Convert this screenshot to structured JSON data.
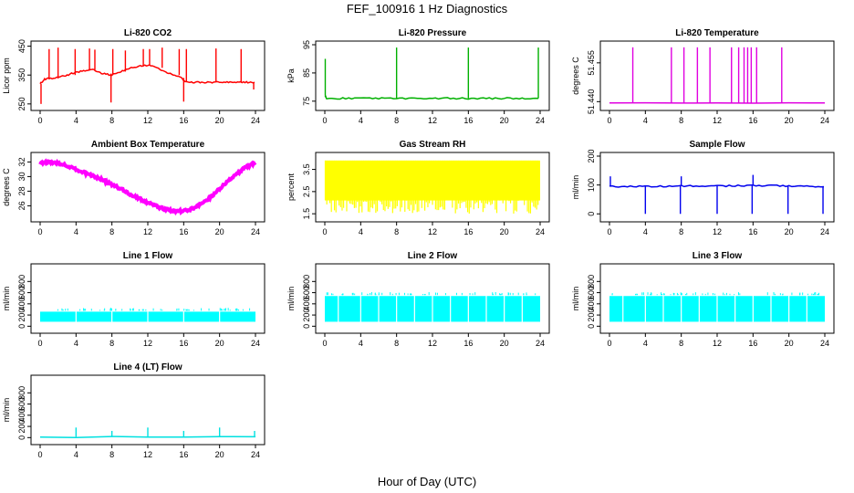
{
  "figure": {
    "title": "FEF_100916  1 Hz Diagnostics",
    "xlabel": "Hour of Day (UTC)"
  },
  "chart_data": [
    {
      "type": "line",
      "title": "Li-820 CO2",
      "ylabel": "Licor ppm",
      "color": "#ff0000",
      "xlim": [
        0,
        24
      ],
      "ylim": [
        240,
        455
      ],
      "xticks": [
        0,
        4,
        8,
        12,
        16,
        20,
        24
      ],
      "yticks": [
        250,
        350,
        450
      ],
      "series": [
        {
          "x": [
            0,
            0.5,
            1,
            2,
            3,
            4,
            5,
            6,
            7,
            8,
            9,
            10,
            11,
            12,
            13,
            14,
            15,
            15.8,
            16.2,
            17,
            18,
            19,
            20,
            21,
            22,
            23,
            23.9
          ],
          "values": [
            320,
            335,
            338,
            342,
            350,
            360,
            365,
            368,
            355,
            350,
            362,
            375,
            380,
            385,
            375,
            360,
            350,
            340,
            325,
            325,
            325,
            325,
            325,
            325,
            325,
            325,
            325
          ]
        }
      ],
      "spikes": [
        {
          "x": 0.1,
          "v": 250
        },
        {
          "x": 1.0,
          "v": 440
        },
        {
          "x": 2.0,
          "v": 445
        },
        {
          "x": 3.9,
          "v": 440
        },
        {
          "x": 5.5,
          "v": 442
        },
        {
          "x": 6.1,
          "v": 438
        },
        {
          "x": 7.9,
          "v": 255
        },
        {
          "x": 8.1,
          "v": 440
        },
        {
          "x": 9.5,
          "v": 435
        },
        {
          "x": 11.5,
          "v": 440
        },
        {
          "x": 12.2,
          "v": 440
        },
        {
          "x": 13.6,
          "v": 445
        },
        {
          "x": 15.5,
          "v": 440
        },
        {
          "x": 16.0,
          "v": 258
        },
        {
          "x": 16.3,
          "v": 440
        },
        {
          "x": 19.6,
          "v": 442
        },
        {
          "x": 22.4,
          "v": 440
        },
        {
          "x": 23.8,
          "v": 300
        }
      ]
    },
    {
      "type": "line",
      "title": "Li-820 Pressure",
      "ylabel": "kPa",
      "color": "#00b000",
      "xlim": [
        0,
        24
      ],
      "ylim": [
        73,
        95
      ],
      "xticks": [
        0,
        4,
        8,
        12,
        16,
        20,
        24
      ],
      "yticks": [
        75,
        85,
        95
      ],
      "series": [
        {
          "x": [
            0,
            0.2,
            2,
            4,
            6,
            8,
            10,
            12,
            14,
            16,
            18,
            20,
            22,
            23.8
          ],
          "values": [
            77,
            76,
            76,
            76,
            76,
            76,
            76,
            76,
            76,
            76,
            76,
            76,
            76,
            76
          ]
        }
      ],
      "spikes": [
        {
          "x": 0.05,
          "v": 90
        },
        {
          "x": 8.0,
          "v": 94
        },
        {
          "x": 16.0,
          "v": 94
        },
        {
          "x": 23.8,
          "v": 94
        }
      ]
    },
    {
      "type": "line",
      "title": "Li-820 Temperature",
      "ylabel": "degrees C",
      "color": "#e000e0",
      "xlim": [
        0,
        24
      ],
      "ylim": [
        51.438,
        51.462
      ],
      "xticks": [
        0,
        4,
        8,
        12,
        16,
        20,
        24
      ],
      "yticks": [
        51.44,
        51.455
      ],
      "ytick_labels": [
        "51.440",
        "51.455"
      ],
      "series": [
        {
          "x": [
            0,
            24
          ],
          "values": [
            51.4395,
            51.4395
          ]
        }
      ],
      "spikes": [
        {
          "x": 2.6,
          "v": 51.461
        },
        {
          "x": 6.9,
          "v": 51.461
        },
        {
          "x": 8.3,
          "v": 51.461
        },
        {
          "x": 9.8,
          "v": 51.461
        },
        {
          "x": 11.2,
          "v": 51.461
        },
        {
          "x": 13.6,
          "v": 51.461
        },
        {
          "x": 14.4,
          "v": 51.461
        },
        {
          "x": 15.0,
          "v": 51.461
        },
        {
          "x": 15.4,
          "v": 51.461
        },
        {
          "x": 15.8,
          "v": 51.461
        },
        {
          "x": 16.4,
          "v": 51.461
        },
        {
          "x": 19.2,
          "v": 51.461
        }
      ]
    },
    {
      "type": "line",
      "title": "Ambient Box Temperature",
      "ylabel": "degrees C",
      "color": "#ff00ff",
      "xlim": [
        0,
        24
      ],
      "ylim": [
        24.3,
        32.8
      ],
      "xticks": [
        0,
        4,
        8,
        12,
        16,
        20,
        24
      ],
      "yticks": [
        26,
        28,
        30,
        32
      ],
      "series": [
        {
          "x": [
            0,
            1,
            2,
            3,
            4,
            5,
            6,
            7,
            8,
            9,
            10,
            11,
            12,
            13,
            14,
            15,
            16,
            17,
            18,
            19,
            20,
            21,
            22,
            23,
            24
          ],
          "values": [
            31.8,
            32.0,
            31.8,
            31.5,
            31.0,
            30.5,
            30.0,
            29.5,
            28.9,
            28.3,
            27.6,
            27.0,
            26.4,
            25.9,
            25.5,
            25.2,
            25.3,
            25.6,
            26.3,
            27.2,
            28.3,
            29.5,
            30.5,
            31.3,
            31.9
          ]
        }
      ],
      "band": 0.35
    },
    {
      "type": "area",
      "title": "Gas Stream RH",
      "ylabel": "percent",
      "color": "#ffff00",
      "xlim": [
        0,
        24
      ],
      "ylim": [
        1.3,
        4.1
      ],
      "xticks": [
        0,
        4,
        8,
        12,
        16,
        20,
        24
      ],
      "yticks": [
        1.5,
        2.5,
        3.5
      ],
      "series": [
        {
          "x": [
            0,
            24
          ],
          "upper": [
            3.9,
            3.9
          ],
          "lower": [
            2.1,
            2.1
          ],
          "min": 1.5
        }
      ]
    },
    {
      "type": "line",
      "title": "Sample Flow",
      "ylabel": "ml/min",
      "color": "#0000ee",
      "xlim": [
        0,
        24
      ],
      "ylim": [
        -15,
        200
      ],
      "xticks": [
        0,
        4,
        8,
        12,
        16,
        20,
        24
      ],
      "yticks": [
        0,
        100,
        200
      ],
      "series": [
        {
          "x": [
            0,
            2,
            4,
            6,
            8,
            10,
            12,
            14,
            16,
            18,
            20,
            22,
            23.9
          ],
          "values": [
            95,
            95,
            95,
            96,
            96,
            97,
            97,
            97,
            98,
            98,
            96,
            95,
            94
          ]
        }
      ],
      "spikes": [
        {
          "x": 0.1,
          "v": 130
        },
        {
          "x": 4.0,
          "v": 0
        },
        {
          "x": 7.9,
          "v": 0
        },
        {
          "x": 8.0,
          "v": 130
        },
        {
          "x": 12.0,
          "v": 0
        },
        {
          "x": 15.9,
          "v": 0
        },
        {
          "x": 16.0,
          "v": 135
        },
        {
          "x": 19.9,
          "v": 0
        },
        {
          "x": 23.8,
          "v": 0
        }
      ]
    },
    {
      "type": "area",
      "title": "Line 1 Flow",
      "ylabel": "ml/min",
      "color": "#00ffff",
      "xlim": [
        0,
        24
      ],
      "ylim": [
        -60,
        1050
      ],
      "xticks": [
        0,
        4,
        8,
        12,
        16,
        20,
        24
      ],
      "yticks": [
        0,
        200,
        400,
        600,
        800
      ],
      "series": [
        {
          "x": [
            0,
            24
          ],
          "upper": [
            260,
            260
          ],
          "lower": [
            80,
            80
          ]
        }
      ],
      "gaps": [
        4,
        8,
        12,
        16,
        20
      ]
    },
    {
      "type": "area",
      "title": "Line 2 Flow",
      "ylabel": "ml/min",
      "color": "#00ffff",
      "xlim": [
        0,
        24
      ],
      "ylim": [
        -60,
        1050
      ],
      "xticks": [
        0,
        4,
        8,
        12,
        16,
        20,
        24
      ],
      "yticks": [
        0,
        200,
        400,
        600,
        800
      ],
      "series": [
        {
          "x": [
            0,
            24
          ],
          "upper": [
            540,
            540
          ],
          "lower": [
            80,
            80
          ]
        }
      ],
      "gaps": [
        1.5,
        4,
        6,
        8,
        10,
        12,
        14,
        16,
        18,
        20,
        22
      ]
    },
    {
      "type": "area",
      "title": "Line 3 Flow",
      "ylabel": "ml/min",
      "color": "#00ffff",
      "xlim": [
        0,
        24
      ],
      "ylim": [
        -60,
        1050
      ],
      "xticks": [
        0,
        4,
        8,
        12,
        16,
        20,
        24
      ],
      "yticks": [
        0,
        200,
        400,
        600,
        800
      ],
      "series": [
        {
          "x": [
            0,
            24
          ],
          "upper": [
            540,
            540
          ],
          "lower": [
            80,
            80
          ]
        }
      ],
      "gaps": [
        1.5,
        4,
        6,
        8,
        10,
        12,
        14,
        16,
        18,
        20,
        22
      ]
    },
    {
      "type": "line",
      "title": "Line 4 (LT) Flow",
      "ylabel": "ml/min",
      "color": "#00e0e0",
      "xlim": [
        0,
        24
      ],
      "ylim": [
        -60,
        1050
      ],
      "xticks": [
        0,
        4,
        8,
        12,
        16,
        20,
        24
      ],
      "yticks": [
        0,
        200,
        400,
        600,
        800
      ],
      "series": [
        {
          "x": [
            0,
            24
          ],
          "values": [
            15,
            15
          ]
        }
      ],
      "spikes": [
        {
          "x": 4.0,
          "v": 180
        },
        {
          "x": 8.0,
          "v": 120
        },
        {
          "x": 12.0,
          "v": 180
        },
        {
          "x": 16.0,
          "v": 120
        },
        {
          "x": 20.0,
          "v": 180
        },
        {
          "x": 23.9,
          "v": 120
        }
      ]
    }
  ]
}
